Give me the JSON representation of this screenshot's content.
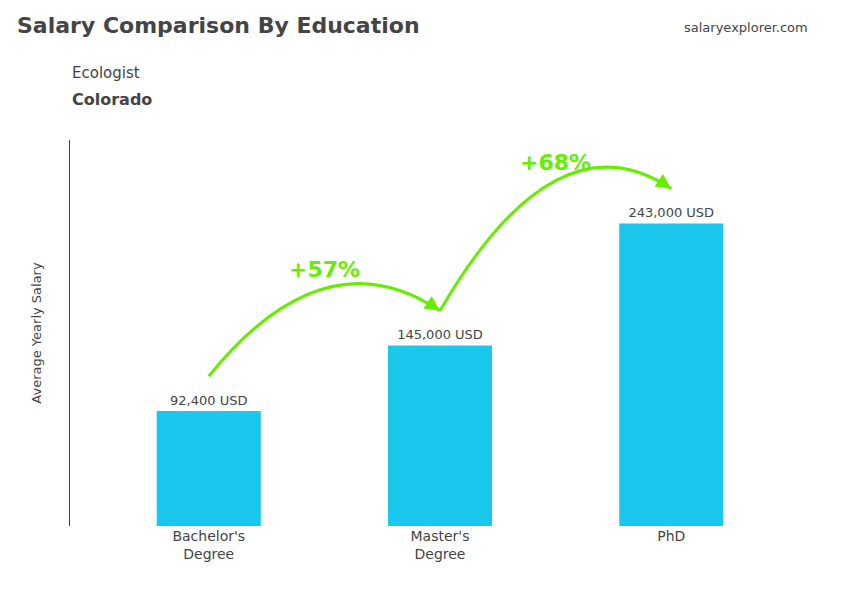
{
  "chart_data": {
    "type": "bar",
    "title": "Salary Comparison By Education",
    "subtitle": [
      "Ecologist",
      "Colorado"
    ],
    "ylabel": "Average Yearly Salary",
    "categories": [
      "Bachelor's\nDegree",
      "Master's\nDegree",
      "PhD"
    ],
    "values": [
      92400,
      145000,
      243000
    ],
    "value_labels": [
      "92,400 USD",
      "145,000 USD",
      "243,000 USD"
    ],
    "data_labels": true,
    "color": "#1ac8ed",
    "ylim": [
      0,
      310000
    ],
    "tick_labels": "x",
    "grid": false,
    "annotations": [
      {
        "text": "+57%",
        "from": 0,
        "to": 1,
        "color": "#66ee00"
      },
      {
        "text": "+68%",
        "from": 1,
        "to": 2,
        "color": "#66ee00"
      },
      {
        "text": "salaryexplorer.com"
      }
    ]
  }
}
